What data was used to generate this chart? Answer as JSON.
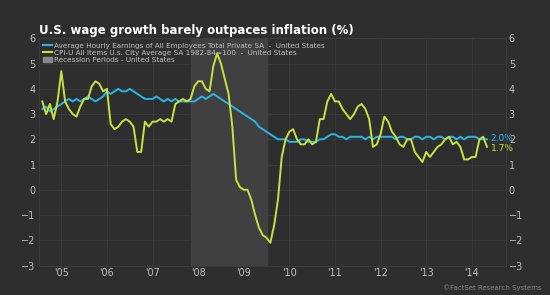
{
  "title": "U.S. wage growth barely outpaces inflation (%)",
  "bg_color": "#2e2e2e",
  "grid_color": "#3d3d3d",
  "text_color": "#c0c0c0",
  "title_color": "#ffffff",
  "recession_color": "#404040",
  "recession_start": 2007.833,
  "recession_end": 2009.5,
  "xlim": [
    2004.5,
    2014.75
  ],
  "ylim": [
    -3,
    6
  ],
  "yticks": [
    -3,
    -2,
    -1,
    0,
    1,
    2,
    3,
    4,
    5,
    6
  ],
  "xtick_labels": [
    "'05",
    "'06",
    "'07",
    "'08",
    "'09",
    "'10",
    "'11",
    "'12",
    "'13",
    "'14"
  ],
  "xtick_pos": [
    2005,
    2006,
    2007,
    2008,
    2009,
    2010,
    2011,
    2012,
    2013,
    2014
  ],
  "label_wages": "Average Hourly Earnings of All Employees Total Private SA  -  United States",
  "label_cpi": "CPI-U All Items U.s. City Average SA 1982-84=100  -  United States",
  "label_recession": "Recession Periods - United States",
  "color_wages": "#29b5e8",
  "color_cpi": "#c8e040",
  "annotation_wages": "2.0%",
  "annotation_cpi": "1.7%",
  "watermark": "©FactSet Research Systems",
  "wages_x": [
    2004.583,
    2004.667,
    2004.75,
    2004.833,
    2004.917,
    2005.0,
    2005.083,
    2005.167,
    2005.25,
    2005.333,
    2005.417,
    2005.5,
    2005.583,
    2005.667,
    2005.75,
    2005.833,
    2005.917,
    2006.0,
    2006.083,
    2006.167,
    2006.25,
    2006.333,
    2006.417,
    2006.5,
    2006.583,
    2006.667,
    2006.75,
    2006.833,
    2006.917,
    2007.0,
    2007.083,
    2007.167,
    2007.25,
    2007.333,
    2007.417,
    2007.5,
    2007.583,
    2007.667,
    2007.75,
    2007.833,
    2007.917,
    2008.0,
    2008.083,
    2008.167,
    2008.25,
    2008.333,
    2008.417,
    2008.5,
    2008.583,
    2008.667,
    2008.75,
    2008.833,
    2008.917,
    2009.0,
    2009.083,
    2009.167,
    2009.25,
    2009.333,
    2009.417,
    2009.5,
    2009.583,
    2009.667,
    2009.75,
    2009.833,
    2009.917,
    2010.0,
    2010.083,
    2010.167,
    2010.25,
    2010.333,
    2010.417,
    2010.5,
    2010.583,
    2010.667,
    2010.75,
    2010.833,
    2010.917,
    2011.0,
    2011.083,
    2011.167,
    2011.25,
    2011.333,
    2011.417,
    2011.5,
    2011.583,
    2011.667,
    2011.75,
    2011.833,
    2011.917,
    2012.0,
    2012.083,
    2012.167,
    2012.25,
    2012.333,
    2012.417,
    2012.5,
    2012.583,
    2012.667,
    2012.75,
    2012.833,
    2012.917,
    2013.0,
    2013.083,
    2013.167,
    2013.25,
    2013.333,
    2013.417,
    2013.5,
    2013.583,
    2013.667,
    2013.75,
    2013.833,
    2013.917,
    2014.0,
    2014.083,
    2014.167,
    2014.25,
    2014.333
  ],
  "wages_y": [
    3.2,
    3.3,
    3.1,
    3.2,
    3.3,
    3.4,
    3.5,
    3.6,
    3.5,
    3.6,
    3.5,
    3.6,
    3.7,
    3.6,
    3.5,
    3.6,
    3.7,
    3.9,
    3.8,
    3.9,
    4.0,
    3.9,
    3.9,
    4.0,
    3.9,
    3.8,
    3.7,
    3.6,
    3.6,
    3.6,
    3.7,
    3.6,
    3.5,
    3.6,
    3.5,
    3.6,
    3.5,
    3.5,
    3.5,
    3.5,
    3.5,
    3.6,
    3.7,
    3.6,
    3.7,
    3.8,
    3.7,
    3.6,
    3.5,
    3.4,
    3.3,
    3.2,
    3.1,
    3.0,
    2.9,
    2.8,
    2.7,
    2.5,
    2.4,
    2.3,
    2.2,
    2.1,
    2.0,
    2.0,
    2.0,
    1.9,
    1.9,
    1.9,
    2.0,
    2.0,
    1.9,
    1.9,
    1.9,
    2.0,
    2.0,
    2.1,
    2.2,
    2.2,
    2.1,
    2.1,
    2.0,
    2.1,
    2.1,
    2.1,
    2.1,
    2.0,
    2.1,
    2.0,
    2.1,
    2.1,
    2.1,
    2.1,
    2.1,
    2.0,
    2.1,
    2.1,
    2.0,
    2.0,
    2.1,
    2.1,
    2.0,
    2.1,
    2.1,
    2.0,
    2.1,
    2.1,
    2.0,
    2.1,
    2.1,
    2.0,
    2.1,
    2.0,
    2.1,
    2.1,
    2.1,
    2.0,
    2.0,
    2.0
  ],
  "cpi_x": [
    2004.583,
    2004.667,
    2004.75,
    2004.833,
    2004.917,
    2005.0,
    2005.083,
    2005.167,
    2005.25,
    2005.333,
    2005.417,
    2005.5,
    2005.583,
    2005.667,
    2005.75,
    2005.833,
    2005.917,
    2006.0,
    2006.083,
    2006.167,
    2006.25,
    2006.333,
    2006.417,
    2006.5,
    2006.583,
    2006.667,
    2006.75,
    2006.833,
    2006.917,
    2007.0,
    2007.083,
    2007.167,
    2007.25,
    2007.333,
    2007.417,
    2007.5,
    2007.583,
    2007.667,
    2007.75,
    2007.833,
    2007.917,
    2008.0,
    2008.083,
    2008.167,
    2008.25,
    2008.333,
    2008.417,
    2008.5,
    2008.583,
    2008.667,
    2008.75,
    2008.833,
    2008.917,
    2009.0,
    2009.083,
    2009.167,
    2009.25,
    2009.333,
    2009.417,
    2009.5,
    2009.583,
    2009.667,
    2009.75,
    2009.833,
    2009.917,
    2010.0,
    2010.083,
    2010.167,
    2010.25,
    2010.333,
    2010.417,
    2010.5,
    2010.583,
    2010.667,
    2010.75,
    2010.833,
    2010.917,
    2011.0,
    2011.083,
    2011.167,
    2011.25,
    2011.333,
    2011.417,
    2011.5,
    2011.583,
    2011.667,
    2011.75,
    2011.833,
    2011.917,
    2012.0,
    2012.083,
    2012.167,
    2012.25,
    2012.333,
    2012.417,
    2012.5,
    2012.583,
    2012.667,
    2012.75,
    2012.833,
    2012.917,
    2013.0,
    2013.083,
    2013.167,
    2013.25,
    2013.333,
    2013.417,
    2013.5,
    2013.583,
    2013.667,
    2013.75,
    2013.833,
    2013.917,
    2014.0,
    2014.083,
    2014.167,
    2014.25,
    2014.333
  ],
  "cpi_y": [
    3.5,
    3.0,
    3.4,
    2.8,
    3.5,
    4.7,
    3.5,
    3.2,
    3.0,
    2.9,
    3.3,
    3.6,
    3.6,
    4.1,
    4.3,
    4.2,
    3.9,
    4.0,
    2.6,
    2.4,
    2.5,
    2.7,
    2.8,
    2.7,
    2.5,
    1.5,
    1.5,
    2.7,
    2.5,
    2.7,
    2.7,
    2.8,
    2.7,
    2.8,
    2.7,
    3.4,
    3.5,
    3.6,
    3.5,
    3.6,
    4.1,
    4.3,
    4.3,
    4.0,
    3.9,
    4.9,
    5.4,
    5.0,
    4.4,
    3.8,
    2.5,
    0.4,
    0.1,
    0.0,
    0.0,
    -0.4,
    -1.0,
    -1.5,
    -1.8,
    -1.9,
    -2.1,
    -1.4,
    -0.4,
    1.3,
    2.0,
    2.3,
    2.4,
    2.0,
    1.8,
    1.8,
    2.0,
    1.8,
    1.9,
    2.8,
    2.8,
    3.5,
    3.8,
    3.5,
    3.5,
    3.2,
    3.0,
    2.8,
    3.0,
    3.3,
    3.4,
    3.2,
    2.8,
    1.7,
    1.8,
    2.2,
    2.9,
    2.7,
    2.3,
    2.1,
    1.8,
    1.7,
    2.0,
    2.0,
    1.5,
    1.3,
    1.1,
    1.5,
    1.3,
    1.5,
    1.7,
    1.8,
    2.0,
    2.1,
    1.8,
    1.9,
    1.7,
    1.2,
    1.2,
    1.3,
    1.3,
    2.0,
    2.1,
    1.7
  ]
}
